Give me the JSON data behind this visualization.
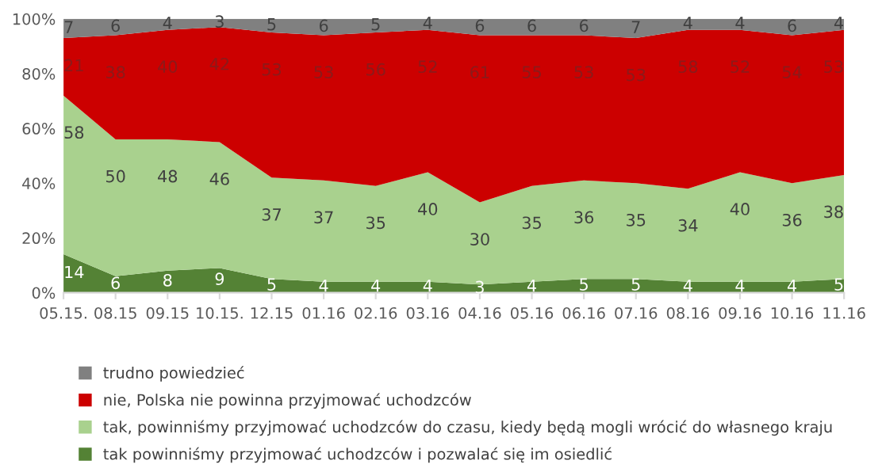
{
  "chart_data": {
    "type": "area",
    "stacked": true,
    "categories": [
      "05.15.",
      "08.15",
      "09.15",
      "10.15.",
      "12.15",
      "01.16",
      "02.16",
      "03.16",
      "04.16",
      "05.16",
      "06.16",
      "07.16",
      "08.16",
      "09.16",
      "10.16",
      "11.16"
    ],
    "series": [
      {
        "name": "tak powinniśmy przyjmować uchodzców i pozwalać się im osiedlić",
        "color": "#548235",
        "values": [
          14,
          6,
          8,
          9,
          5,
          4,
          4,
          4,
          3,
          4,
          5,
          5,
          4,
          4,
          4,
          5
        ]
      },
      {
        "name": "tak, powinniśmy przyjmować uchodzców do czasu, kiedy będą mogli wrócić do własnego kraju",
        "color": "#a9d18e",
        "values": [
          58,
          50,
          48,
          46,
          37,
          37,
          35,
          40,
          30,
          35,
          36,
          35,
          34,
          40,
          36,
          38
        ]
      },
      {
        "name": "nie, Polska nie powinna przyjmować uchodzców",
        "color": "#cc0000",
        "values": [
          21,
          38,
          40,
          42,
          53,
          53,
          56,
          52,
          61,
          55,
          53,
          53,
          58,
          52,
          54,
          53
        ]
      },
      {
        "name": "trudno powiedzieć",
        "color": "#808080",
        "values": [
          7,
          6,
          4,
          3,
          5,
          6,
          5,
          4,
          6,
          6,
          6,
          7,
          4,
          4,
          6,
          4
        ]
      }
    ],
    "ylim": [
      0,
      100
    ],
    "yticks": [
      {
        "value": 0,
        "label": "0%"
      },
      {
        "value": 20,
        "label": "20%"
      },
      {
        "value": 40,
        "label": "40%"
      },
      {
        "value": 60,
        "label": "60%"
      },
      {
        "value": 80,
        "label": "80%"
      },
      {
        "value": 100,
        "label": "100%"
      }
    ],
    "data_labels": true,
    "legend": "bottom",
    "grid": false
  }
}
